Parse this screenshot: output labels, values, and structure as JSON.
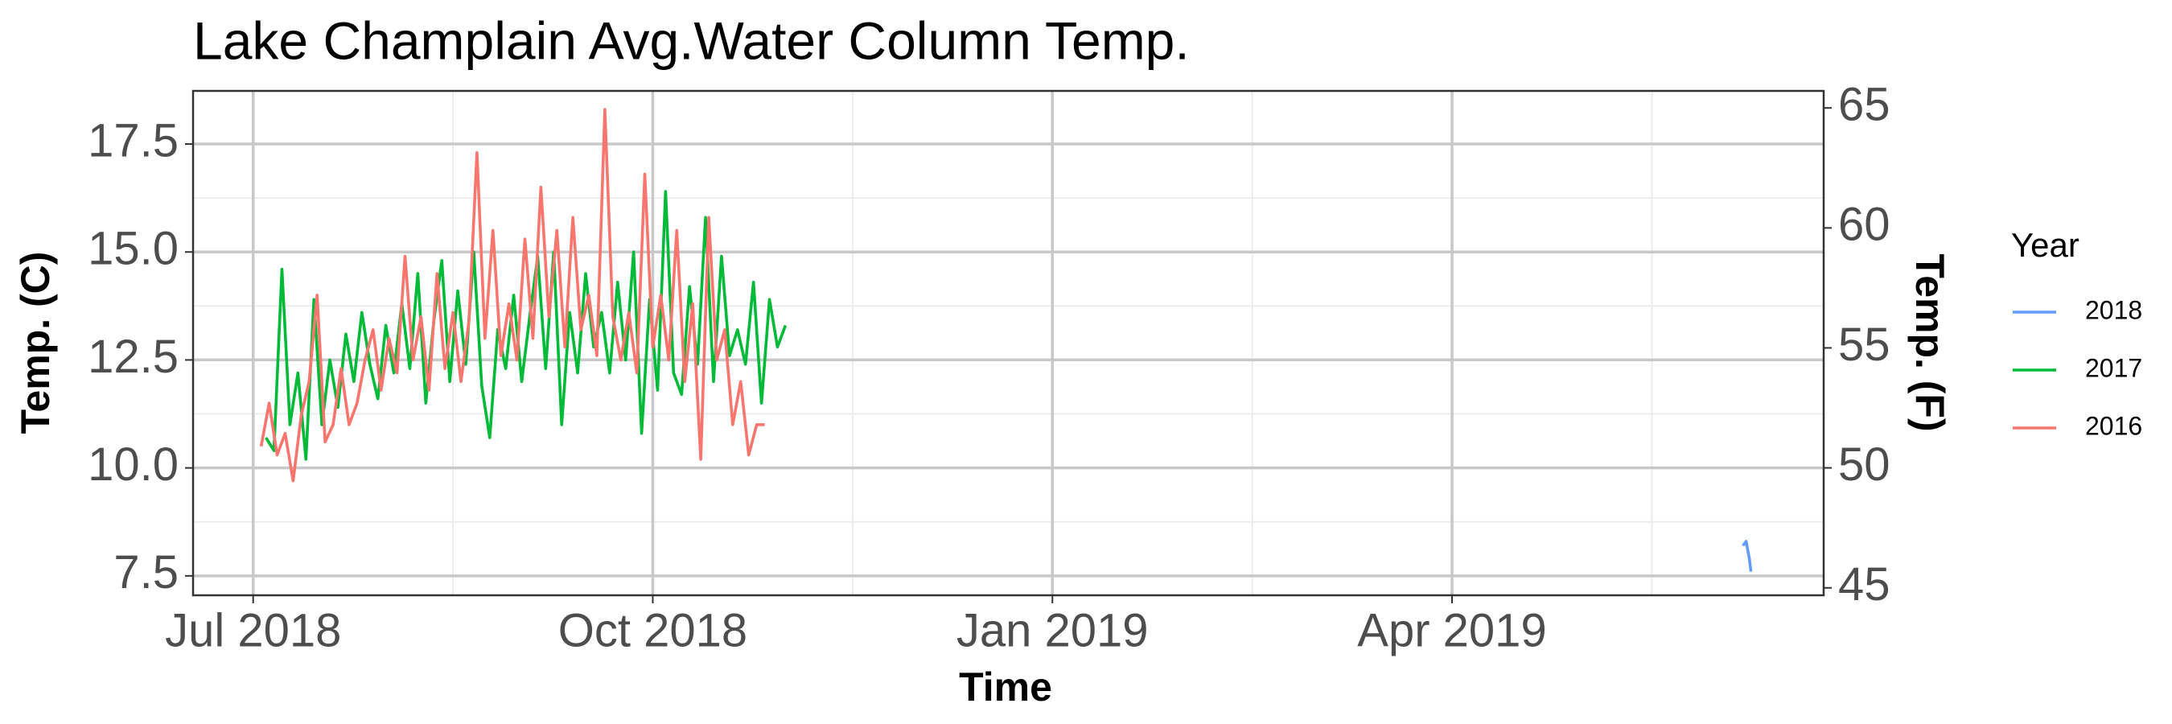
{
  "chart_data": {
    "type": "line",
    "title": "Lake Champlain Avg.Water Column Temp.",
    "x_label": "Time",
    "y_label": "Temp. (C)",
    "y2_label": "Temp. (F)",
    "legend_title": "Year",
    "legend": "right",
    "grid": true,
    "xlim": [
      2018.4624,
      2019.4825
    ],
    "xticks": [
      {
        "value": 2018.5,
        "label": "Jul 2018"
      },
      {
        "value": 2018.75,
        "label": "Oct 2018"
      },
      {
        "value": 2019.0,
        "label": "Jan 2019"
      },
      {
        "value": 2019.25,
        "label": "Apr 2019"
      }
    ],
    "ylim": [
      7.05,
      18.73
    ],
    "yticks": [
      {
        "value": 7.5,
        "label": "7.5"
      },
      {
        "value": 10,
        "label": "10.0"
      },
      {
        "value": 12.5,
        "label": "12.5"
      },
      {
        "value": 15,
        "label": "15.0"
      },
      {
        "value": 17.5,
        "label": "17.5"
      }
    ],
    "y2lim": [
      44.69,
      65.71
    ],
    "y2ticks": [
      45,
      50,
      55,
      60,
      65
    ],
    "series": [
      {
        "name": "2018",
        "color": "#619CFF",
        "x": [
          2019.432,
          2019.434,
          2019.436,
          2019.437
        ],
        "values": [
          8.2,
          8.3,
          7.9,
          7.6
        ]
      },
      {
        "name": "2017",
        "color": "#00BA38",
        "x": [
          2018.508,
          2018.513,
          2018.518,
          2018.523,
          2018.528,
          2018.533,
          2018.538,
          2018.543,
          2018.548,
          2018.553,
          2018.558,
          2018.563,
          2018.568,
          2018.573,
          2018.578,
          2018.583,
          2018.588,
          2018.593,
          2018.598,
          2018.603,
          2018.608,
          2018.613,
          2018.618,
          2018.623,
          2018.628,
          2018.633,
          2018.638,
          2018.643,
          2018.648,
          2018.653,
          2018.658,
          2018.663,
          2018.668,
          2018.673,
          2018.678,
          2018.683,
          2018.688,
          2018.693,
          2018.698,
          2018.703,
          2018.708,
          2018.713,
          2018.718,
          2018.723,
          2018.728,
          2018.733,
          2018.738,
          2018.743,
          2018.748,
          2018.753,
          2018.758,
          2018.763,
          2018.768,
          2018.773,
          2018.778,
          2018.783,
          2018.788,
          2018.793,
          2018.798,
          2018.803,
          2018.808,
          2018.813,
          2018.818,
          2018.823,
          2018.828,
          2018.833
        ],
        "values": [
          10.7,
          10.4,
          14.6,
          11.0,
          12.2,
          10.2,
          13.9,
          11.0,
          12.5,
          11.4,
          13.1,
          12.0,
          13.6,
          12.4,
          11.6,
          13.3,
          12.2,
          13.8,
          12.3,
          14.5,
          11.5,
          13.4,
          14.8,
          12.0,
          14.1,
          12.4,
          15.0,
          11.9,
          10.7,
          13.2,
          12.3,
          14.0,
          12.0,
          13.5,
          14.9,
          12.3,
          15.0,
          11.0,
          13.6,
          12.2,
          14.5,
          12.8,
          13.6,
          12.2,
          14.3,
          12.5,
          15.0,
          10.8,
          13.9,
          11.8,
          16.4,
          12.2,
          11.7,
          14.2,
          12.4,
          15.8,
          12.0,
          14.9,
          12.6,
          13.2,
          12.4,
          14.3,
          11.5,
          13.9,
          12.8,
          13.3
        ]
      },
      {
        "name": "2016",
        "color": "#F8766D",
        "x": [
          2018.505,
          2018.51,
          2018.515,
          2018.52,
          2018.525,
          2018.53,
          2018.535,
          2018.54,
          2018.545,
          2018.55,
          2018.555,
          2018.56,
          2018.565,
          2018.57,
          2018.575,
          2018.58,
          2018.585,
          2018.59,
          2018.595,
          2018.6,
          2018.605,
          2018.61,
          2018.615,
          2018.62,
          2018.625,
          2018.63,
          2018.635,
          2018.64,
          2018.645,
          2018.65,
          2018.655,
          2018.66,
          2018.665,
          2018.67,
          2018.675,
          2018.68,
          2018.685,
          2018.69,
          2018.695,
          2018.7,
          2018.705,
          2018.71,
          2018.715,
          2018.72,
          2018.725,
          2018.73,
          2018.735,
          2018.74,
          2018.745,
          2018.75,
          2018.755,
          2018.76,
          2018.765,
          2018.77,
          2018.775,
          2018.78,
          2018.785,
          2018.79,
          2018.795,
          2018.8,
          2018.805,
          2018.81,
          2018.815,
          2018.82
        ],
        "values": [
          10.5,
          11.5,
          10.3,
          10.8,
          9.7,
          11.2,
          12.0,
          14.0,
          10.6,
          11.0,
          12.3,
          11.0,
          11.5,
          12.5,
          13.2,
          11.8,
          13.0,
          12.2,
          14.9,
          12.5,
          13.5,
          11.8,
          14.5,
          12.3,
          13.6,
          12.0,
          13.4,
          17.3,
          13.0,
          15.5,
          12.6,
          13.8,
          12.5,
          15.3,
          13.0,
          16.5,
          13.5,
          15.5,
          12.8,
          15.8,
          13.2,
          14.0,
          12.6,
          18.3,
          13.5,
          12.5,
          13.6,
          12.2,
          16.8,
          12.8,
          14.0,
          12.5,
          15.5,
          12.0,
          13.8,
          10.2,
          15.8,
          12.5,
          13.2,
          11.0,
          12.0,
          10.3,
          11.0,
          11.0
        ]
      }
    ]
  }
}
